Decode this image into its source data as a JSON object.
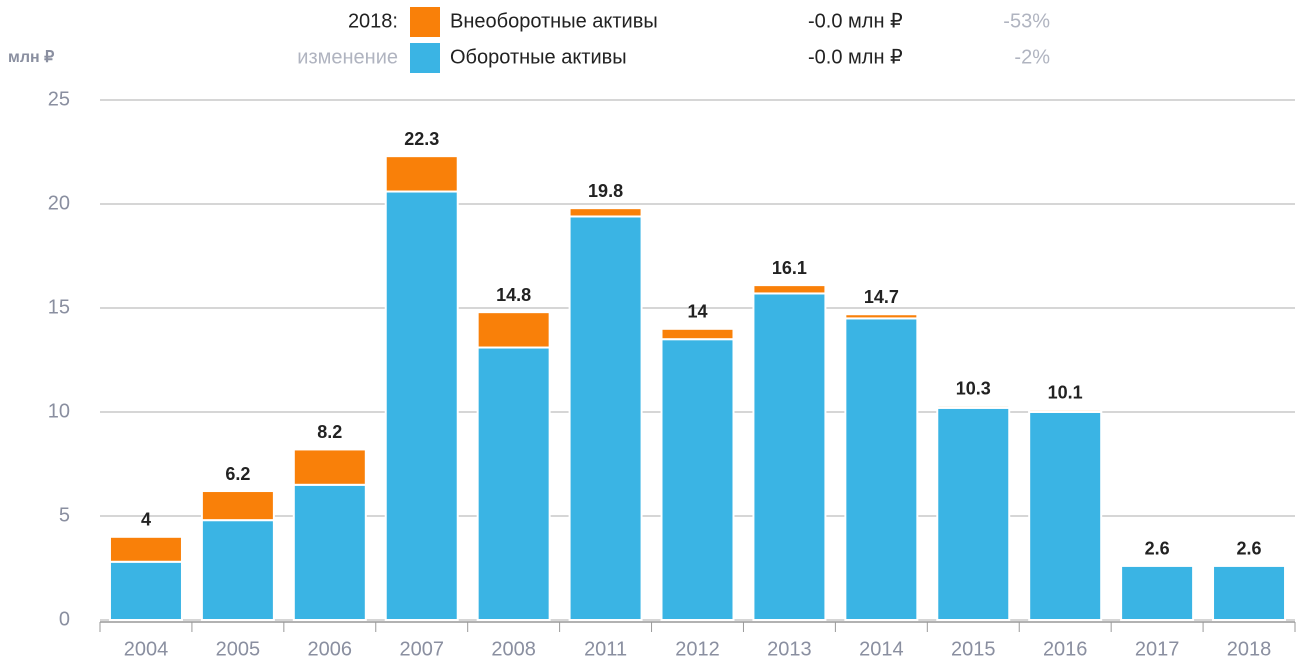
{
  "chart_data": {
    "type": "stacked_bar",
    "y_label": "млн ₽",
    "legend_title": "2018:",
    "legend_subtitle": "изменение",
    "categories": [
      "2004",
      "2005",
      "2006",
      "2007",
      "2008",
      "2011",
      "2012",
      "2013",
      "2014",
      "2015",
      "2016",
      "2017",
      "2018"
    ],
    "series": [
      {
        "name": "Оборотные активы",
        "color": "#3ab4e4",
        "change_value": "-0.0 млн ₽",
        "change_pct": "-2%",
        "values": [
          2.8,
          4.8,
          6.5,
          20.6,
          13.1,
          19.4,
          13.5,
          15.7,
          14.5,
          10.2,
          10.0,
          2.6,
          2.6
        ]
      },
      {
        "name": "Внеоборотные активы",
        "color": "#f98009",
        "change_value": "-0.0 млн ₽",
        "change_pct": "-53%",
        "values": [
          1.2,
          1.4,
          1.7,
          1.7,
          1.7,
          0.4,
          0.5,
          0.4,
          0.2,
          0.1,
          0.1,
          0,
          0
        ]
      }
    ],
    "totals": [
      4,
      6.2,
      8.2,
      22.3,
      14.8,
      19.8,
      14,
      16.1,
      14.7,
      10.3,
      10.1,
      2.6,
      2.6
    ],
    "ylim": [
      0,
      25
    ],
    "yticks": [
      0,
      5,
      10,
      15,
      20,
      25
    ],
    "grid": true
  }
}
